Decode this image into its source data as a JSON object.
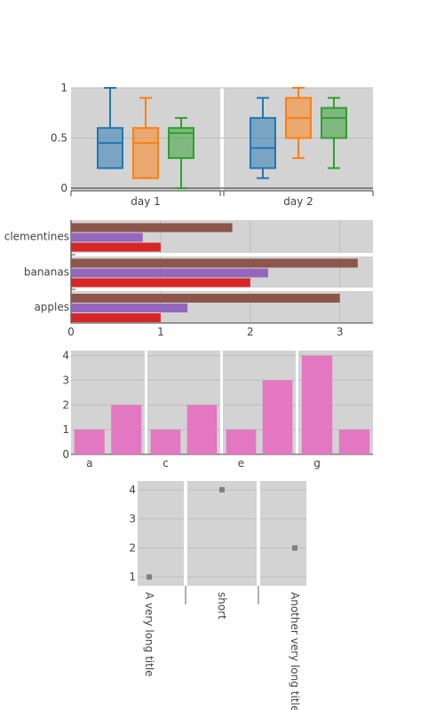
{
  "chart_data": [
    {
      "type": "box",
      "categories": [
        "day 1",
        "day 2"
      ],
      "ylim": [
        0,
        1
      ],
      "yticks": [
        "0",
        "0.5",
        "1"
      ],
      "series": [
        {
          "color": "#1f77b4",
          "boxes": [
            {
              "min": 0.2,
              "q1": 0.2,
              "median": 0.45,
              "q3": 0.6,
              "max": 1.0
            },
            {
              "min": 0.1,
              "q1": 0.2,
              "median": 0.4,
              "q3": 0.7,
              "max": 0.9
            }
          ]
        },
        {
          "color": "#ff7f0e",
          "boxes": [
            {
              "min": 0.1,
              "q1": 0.1,
              "median": 0.45,
              "q3": 0.6,
              "max": 0.9
            },
            {
              "min": 0.3,
              "q1": 0.5,
              "median": 0.7,
              "q3": 0.9,
              "max": 1.0
            }
          ]
        },
        {
          "color": "#2ca02c",
          "boxes": [
            {
              "min": 0.0,
              "q1": 0.3,
              "median": 0.55,
              "q3": 0.6,
              "max": 0.7
            },
            {
              "min": 0.2,
              "q1": 0.5,
              "median": 0.7,
              "q3": 0.8,
              "max": 0.9
            }
          ]
        }
      ]
    },
    {
      "type": "bar",
      "orientation": "horizontal",
      "categories": [
        "clementines",
        "bananas",
        "apples"
      ],
      "xlim": [
        0,
        3.37
      ],
      "xticks": [
        "0",
        "1",
        "2",
        "3"
      ],
      "series": [
        {
          "color": "#8c564b",
          "values": [
            1.8,
            3.2,
            3.0
          ]
        },
        {
          "color": "#9467bd",
          "values": [
            0.8,
            2.2,
            1.3
          ]
        },
        {
          "color": "#d62728",
          "values": [
            1.0,
            2.0,
            1.0
          ]
        }
      ]
    },
    {
      "type": "bar",
      "ylim": [
        0,
        4.2
      ],
      "yticks": [
        "0",
        "1",
        "2",
        "3",
        "4"
      ],
      "xticks": [
        "a",
        "c",
        "e",
        "g"
      ],
      "color": "#e377c2",
      "groups": [
        {
          "values": [
            1,
            2
          ]
        },
        {
          "values": [
            1,
            2
          ]
        },
        {
          "values": [
            1,
            3
          ]
        },
        {
          "values": [
            4,
            1
          ]
        }
      ]
    },
    {
      "type": "scatter",
      "ylim": [
        0.7,
        4.3
      ],
      "yticks": [
        "1",
        "2",
        "3",
        "4"
      ],
      "categories": [
        "A very long title",
        "short",
        "Another very long title"
      ],
      "values": [
        1,
        4,
        2
      ],
      "color": "#7f7f7f"
    }
  ]
}
